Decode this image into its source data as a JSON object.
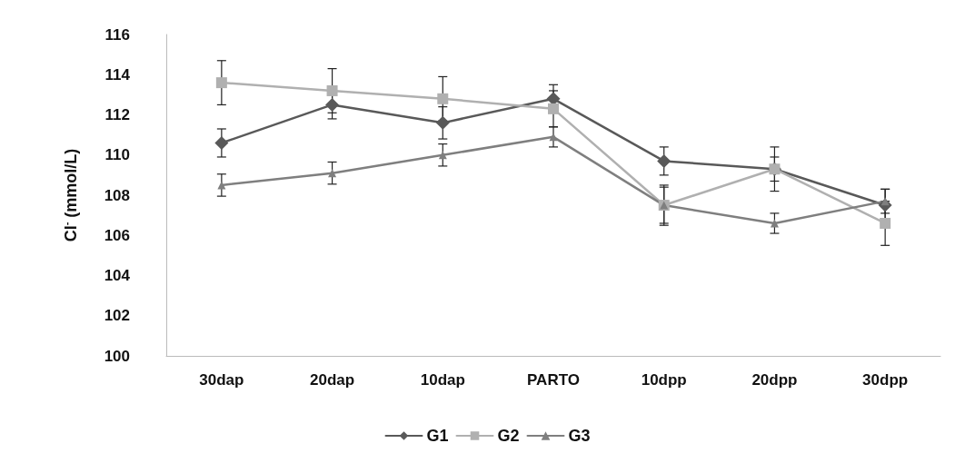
{
  "chart_data": {
    "type": "line",
    "ylabel": "Cl$^{-}$ (mmol/L)",
    "categories": [
      "30dap",
      "20dap",
      "10dap",
      "PARTO",
      "10dpp",
      "20dpp",
      "30dpp"
    ],
    "series": [
      {
        "name": "G1",
        "color": "#595959",
        "marker": "diamond",
        "values": [
          110.6,
          112.5,
          111.6,
          112.8,
          109.7,
          109.3,
          107.5
        ],
        "errors": [
          0.7,
          0.7,
          0.8,
          0.7,
          0.7,
          1.1,
          0.8
        ]
      },
      {
        "name": "G2",
        "color": "#b0b0b0",
        "marker": "square",
        "values": [
          113.6,
          113.2,
          112.8,
          112.3,
          107.5,
          109.3,
          106.6
        ],
        "errors": [
          1.1,
          1.1,
          1.1,
          0.9,
          1.0,
          0.6,
          1.1
        ]
      },
      {
        "name": "G3",
        "color": "#7f7f7f",
        "marker": "triangle",
        "values": [
          108.5,
          109.1,
          110.0,
          110.9,
          107.5,
          106.6,
          107.7
        ],
        "errors": [
          0.55,
          0.55,
          0.55,
          0.5,
          0.9,
          0.5,
          0.6
        ]
      }
    ],
    "ylim": [
      100,
      116
    ],
    "yticks": [
      100,
      102,
      104,
      106,
      108,
      110,
      112,
      114,
      116
    ],
    "grid": false,
    "legend": "bottom"
  }
}
